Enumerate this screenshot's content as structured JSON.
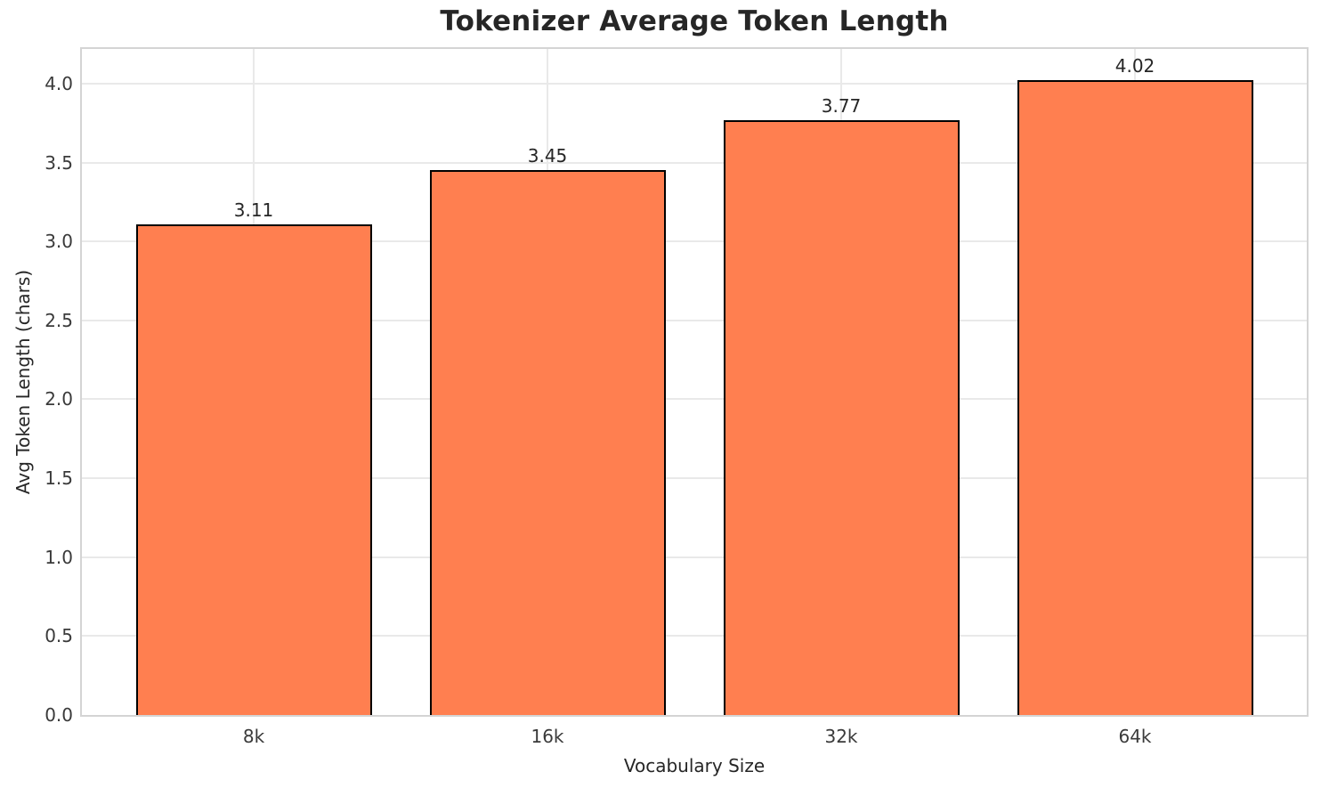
{
  "chart_data": {
    "type": "bar",
    "title": "Tokenizer Average Token Length",
    "xlabel": "Vocabulary Size",
    "ylabel": "Avg Token Length (chars)",
    "categories": [
      "8k",
      "16k",
      "32k",
      "64k"
    ],
    "values": [
      3.11,
      3.45,
      3.77,
      4.02
    ],
    "value_labels": [
      "3.11",
      "3.45",
      "3.77",
      "4.02"
    ],
    "ytick_values": [
      0.0,
      0.5,
      1.0,
      1.5,
      2.0,
      2.5,
      3.0,
      3.5,
      4.0
    ],
    "ytick_labels": [
      "0.0",
      "0.5",
      "1.0",
      "1.5",
      "2.0",
      "2.5",
      "3.0",
      "3.5",
      "4.0"
    ],
    "ylim": [
      0,
      4.22
    ],
    "grid": true,
    "legend_position": "none",
    "colors": {
      "bar_fill": "#FF7F50",
      "bar_edge": "#000000",
      "grid": "#e9e9e9",
      "spine": "#d4d4d4",
      "text": "#262626",
      "background": "#ffffff"
    }
  }
}
